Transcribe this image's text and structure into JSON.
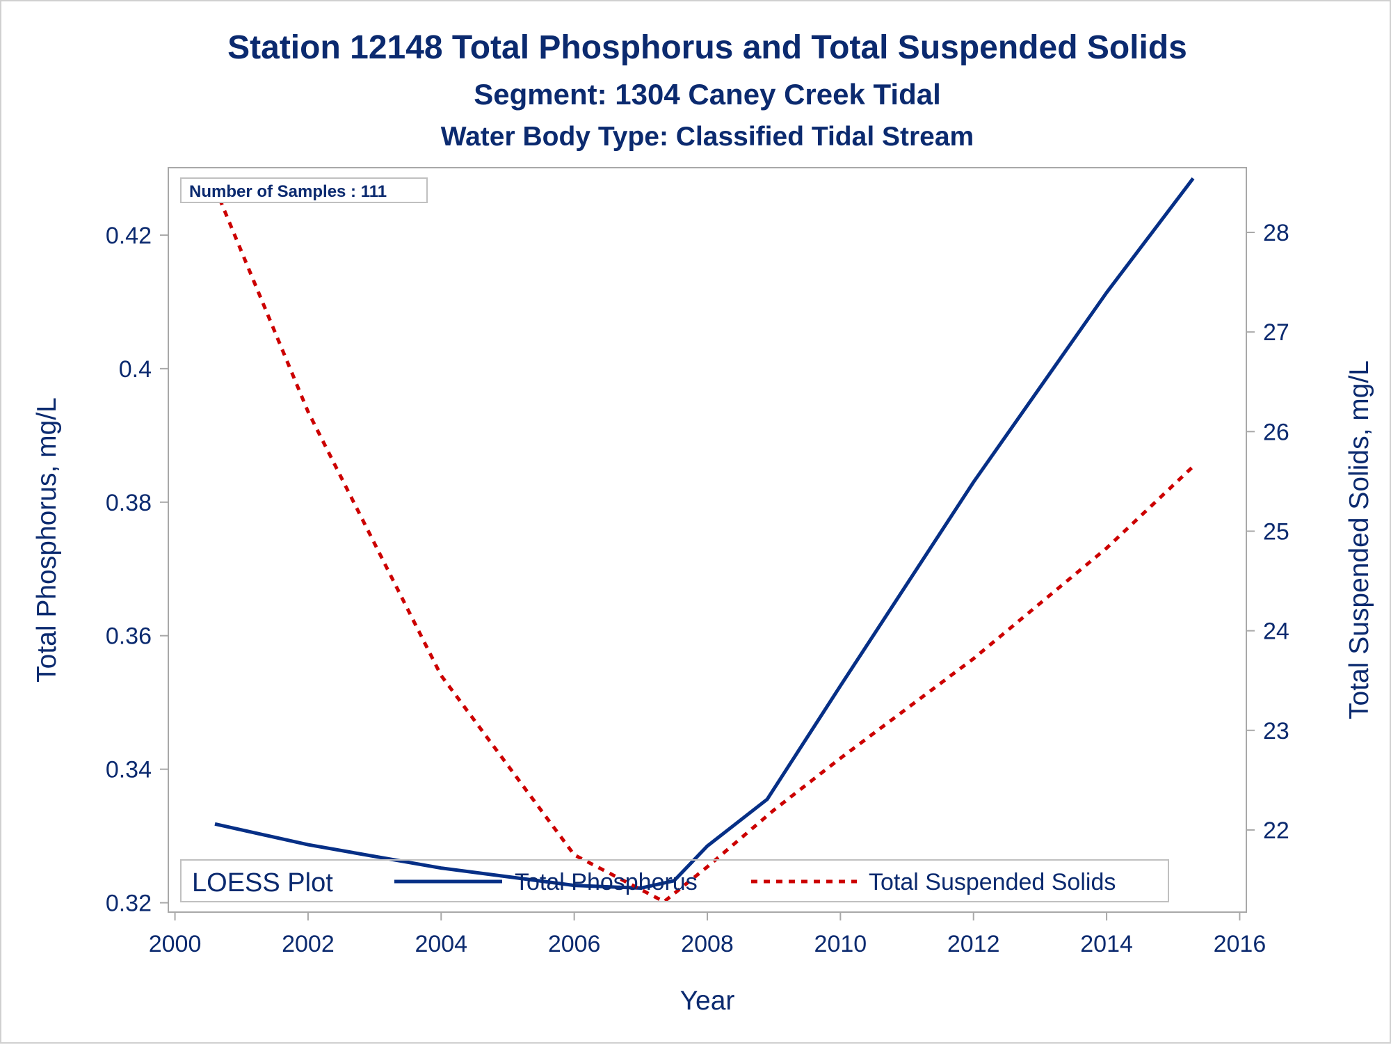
{
  "titles": {
    "title": "Station 12148  Total Phosphorus and Total Suspended Solids",
    "subtitle": "Segment: 1304  Caney Creek Tidal",
    "subtitle2": "Water Body Type: Classified Tidal Stream"
  },
  "inset": {
    "samples": "Number of Samples : 111"
  },
  "legend": {
    "title": "LOESS Plot"
  },
  "colors": {
    "text": "#0b2a6f",
    "tp": "#062f86",
    "tss": "#cc0000",
    "frame": "#a8a8a8"
  },
  "chart_data": {
    "type": "line",
    "xlabel": "Year",
    "ylabel": "Total Phosphorus, mg/L",
    "y2label": "Total Suspended Solids, mg/L",
    "xlim": [
      1999.9,
      2016.1
    ],
    "ylim": [
      0.3186,
      0.4301
    ],
    "y2lim": [
      21.175,
      28.65
    ],
    "xticks": [
      2000,
      2002,
      2004,
      2006,
      2008,
      2010,
      2012,
      2014,
      2016
    ],
    "yticks": [
      0.32,
      0.34,
      0.36,
      0.38,
      0.4,
      0.42
    ],
    "y2ticks": [
      22,
      23,
      24,
      25,
      26,
      27,
      28
    ],
    "grid": false,
    "legend_position": "bottom-inside",
    "series": [
      {
        "name": "Total Phosphorus",
        "axis": "left",
        "style": "solid",
        "points": [
          [
            2000.6,
            0.3318
          ],
          [
            2002,
            0.3287
          ],
          [
            2004,
            0.3252
          ],
          [
            2006,
            0.3226
          ],
          [
            2007,
            0.3222
          ],
          [
            2007.5,
            0.3233
          ],
          [
            2008,
            0.3285
          ],
          [
            2008.9,
            0.3355
          ],
          [
            2010,
            0.3525
          ],
          [
            2012,
            0.383
          ],
          [
            2014,
            0.4114
          ],
          [
            2015.3,
            0.4285
          ]
        ]
      },
      {
        "name": "Total Suspended Solids",
        "axis": "right",
        "style": "dashed",
        "points": [
          [
            2000.6,
            28.45
          ],
          [
            2002,
            26.2
          ],
          [
            2004,
            23.55
          ],
          [
            2006,
            21.75
          ],
          [
            2007.35,
            21.28
          ],
          [
            2008,
            21.63
          ],
          [
            2009,
            22.2
          ],
          [
            2010,
            22.72
          ],
          [
            2012,
            23.72
          ],
          [
            2014,
            24.83
          ],
          [
            2015.3,
            25.65
          ]
        ]
      }
    ]
  }
}
